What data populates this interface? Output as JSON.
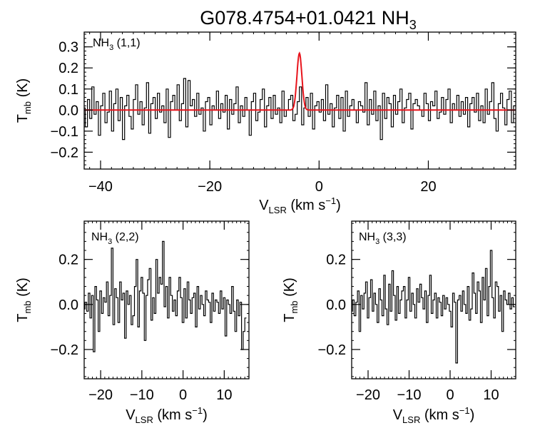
{
  "figure": {
    "title_main": "G078.4754+01.0421 NH",
    "title_sub": "3"
  },
  "colors": {
    "data": "#000000",
    "fit": "#e8141c",
    "axes": "#000000"
  },
  "chart_data": [
    {
      "type": "line",
      "panel": "top",
      "label_main": "NH",
      "label_sub": "3",
      "label_rest": " (1,1)",
      "xlabel_main": "V",
      "xlabel_sub": "LSR",
      "xlabel_rest": " (km s",
      "xlabel_sup": "−1",
      "xlabel_close": ")",
      "ylabel_main": "T",
      "ylabel_sub": "mb",
      "ylabel_rest": " (K)",
      "xlim": [
        -43,
        36
      ],
      "ylim": [
        -0.28,
        0.37
      ],
      "xticks": [
        -40,
        -20,
        0,
        20
      ],
      "xtick_labels": [
        "−40",
        "−20",
        "0",
        "20"
      ],
      "yticks": [
        -0.2,
        -0.1,
        0.0,
        0.1,
        0.2,
        0.3
      ],
      "ytick_labels": [
        "−0.2",
        "−0.1",
        "0.0",
        "0.1",
        "0.2",
        "0.3"
      ],
      "x_start": -43,
      "x_step": 0.4,
      "series": [
        {
          "style": "step",
          "values": [
            0.01,
            -0.08,
            0.05,
            -0.04,
            0.11,
            -0.02,
            0.04,
            -0.12,
            0.02,
            0.08,
            -0.06,
            -0.01,
            0.09,
            -0.1,
            0.03,
            0.1,
            -0.05,
            0.06,
            -0.14,
            0.02,
            0.07,
            -0.03,
            -0.09,
            0.05,
            0.12,
            -0.02,
            0.04,
            -0.07,
            0.01,
            0.13,
            -0.11,
            0.03,
            0.06,
            -0.04,
            0.08,
            -0.01,
            0.02,
            -0.06,
            0.1,
            -0.13,
            0.04,
            0.07,
            0.0,
            0.12,
            -0.05,
            0.03,
            0.15,
            -0.08,
            0.14,
            0.02,
            0.05,
            -0.03,
            0.08,
            -0.02,
            0.01,
            -0.1,
            0.04,
            0.06,
            -0.07,
            0.02,
            0.0,
            0.09,
            -0.04,
            0.03,
            -0.01,
            0.07,
            -0.09,
            0.05,
            -0.02,
            0.03,
            0.11,
            -0.06,
            0.02,
            -0.03,
            0.06,
            0.0,
            -0.12,
            0.04,
            0.08,
            -0.05,
            -0.01,
            0.05,
            0.1,
            -0.08,
            0.02,
            0.06,
            -0.04,
            0.07,
            -0.02,
            0.01,
            -0.06,
            0.09,
            -0.03,
            0.0,
            0.05,
            0.07,
            -0.05,
            -0.02,
            0.04,
            0.11,
            -0.07,
            0.01,
            0.06,
            -0.03,
            0.08,
            -0.09,
            0.02,
            0.04,
            -0.01,
            0.05,
            -0.05,
            0.12,
            -0.02,
            0.03,
            -0.08,
            0.01,
            0.07,
            -0.04,
            0.06,
            -0.1,
            0.09,
            -0.03,
            0.02,
            0.05,
            0.0,
            -0.06,
            0.04,
            0.02,
            -0.01,
            0.13,
            -0.07,
            0.05,
            -0.02,
            0.09,
            -0.05,
            0.02,
            -0.14,
            0.08,
            -0.04,
            0.06,
            0.03,
            -0.08,
            0.07,
            -0.02,
            0.04,
            0.1,
            -0.06,
            0.01,
            0.05,
            0.08,
            -0.09,
            0.03,
            0.05,
            0.02,
            0.0,
            -0.03,
            0.08,
            0.03,
            -0.05,
            0.04,
            0.02,
            0.09,
            -0.04,
            -0.01,
            0.06,
            -0.02,
            0.05,
            0.1,
            -0.06,
            0.03,
            0.0,
            0.07,
            -0.03,
            0.04,
            -0.02,
            0.06,
            -0.08,
            0.03,
            0.06,
            -0.01,
            0.08,
            -0.05,
            0.02,
            -0.06,
            0.1,
            -0.02,
            0.04,
            0.13,
            -0.04,
            -0.1,
            0.03,
            0.08,
            0.01,
            -0.07,
            0.05,
            0.09,
            -0.06,
            0.02,
            0.01,
            0.0
          ]
        },
        {
          "style": "fit",
          "baseline": 0.0,
          "amplitude": 0.27,
          "center": -3.6,
          "sigma": 0.45
        }
      ]
    },
    {
      "type": "line",
      "panel": "bottom-left",
      "label_main": "NH",
      "label_sub": "3",
      "label_rest": " (2,2)",
      "xlabel_main": "V",
      "xlabel_sub": "LSR",
      "xlabel_rest": " (km s",
      "xlabel_sup": "−1",
      "xlabel_close": ")",
      "ylabel_main": "T",
      "ylabel_sub": "mb",
      "ylabel_rest": " (K)",
      "xlim": [
        -24,
        16
      ],
      "ylim": [
        -0.33,
        0.37
      ],
      "xticks": [
        -20,
        -10,
        0,
        10
      ],
      "xtick_labels": [
        "−20",
        "−10",
        "0",
        "10"
      ],
      "yticks": [
        -0.2,
        0.0,
        0.2
      ],
      "ytick_labels": [
        "−0.2",
        "0.0",
        "0.2"
      ],
      "x_start": -24,
      "x_step": 0.4,
      "series": [
        {
          "style": "step",
          "values": [
            -0.02,
            0.01,
            -0.03,
            0.05,
            -0.06,
            0.04,
            -0.21,
            0.08,
            0.02,
            -0.12,
            0.06,
            -0.04,
            0.03,
            0.01,
            0.1,
            -0.05,
            0.04,
            0.25,
            -0.09,
            0.07,
            0.03,
            -0.08,
            0.1,
            0.02,
            0.05,
            -0.15,
            0.06,
            0.0,
            0.04,
            -0.09,
            -0.05,
            0.08,
            0.2,
            -0.1,
            0.06,
            0.12,
            0.05,
            -0.16,
            0.04,
            0.11,
            0.16,
            -0.07,
            0.03,
            -0.04,
            0.2,
            0.05,
            0.12,
            0.09,
            0.28,
            -0.01,
            0.08,
            -0.06,
            0.12,
            0.04,
            -0.03,
            0.02,
            -0.05,
            0.06,
            0.12,
            0.03,
            -0.08,
            0.07,
            -0.06,
            0.1,
            0.02,
            -0.04,
            0.03,
            0.05,
            -0.1,
            0.08,
            -0.02,
            0.04,
            0.0,
            -0.05,
            0.06,
            0.02,
            0.01,
            -0.08,
            0.05,
            -0.03,
            0.02,
            0.01,
            -0.04,
            0.06,
            -0.02,
            0.03,
            -0.14,
            0.02,
            0.0,
            -0.04,
            0.08,
            -0.03,
            -0.12,
            0.02,
            -0.05,
            0.01,
            -0.2,
            -0.12,
            -0.06
          ]
        }
      ]
    },
    {
      "type": "line",
      "panel": "bottom-right",
      "label_main": "NH",
      "label_sub": "3",
      "label_rest": " (3,3)",
      "xlabel_main": "V",
      "xlabel_sub": "LSR",
      "xlabel_rest": " (km s",
      "xlabel_sup": "−1",
      "xlabel_close": ")",
      "ylabel_main": "T",
      "ylabel_sub": "mb",
      "ylabel_rest": " (K)",
      "xlim": [
        -24,
        16
      ],
      "ylim": [
        -0.33,
        0.37
      ],
      "xticks": [
        -20,
        -10,
        0,
        10
      ],
      "xtick_labels": [
        "−20",
        "−10",
        "0",
        "10"
      ],
      "yticks": [
        -0.2,
        0.0,
        0.2
      ],
      "ytick_labels": [
        "−0.2",
        "0.0",
        "0.2"
      ],
      "x_start": -24,
      "x_step": 0.4,
      "series": [
        {
          "style": "step",
          "values": [
            -0.03,
            0.02,
            -0.05,
            0.01,
            0.06,
            -0.12,
            0.04,
            -0.02,
            0.05,
            0.1,
            -0.06,
            0.03,
            0.11,
            -0.03,
            0.05,
            0.0,
            -0.08,
            0.07,
            0.02,
            -0.05,
            0.13,
            -0.02,
            -0.09,
            0.09,
            -0.03,
            0.15,
            0.04,
            -0.07,
            0.08,
            -0.04,
            0.02,
            0.06,
            0.08,
            -0.06,
            0.02,
            0.12,
            -0.03,
            0.05,
            0.0,
            -0.06,
            0.07,
            0.01,
            0.09,
            0.03,
            -0.02,
            0.06,
            -0.08,
            0.04,
            0.13,
            -0.04,
            0.02,
            0.05,
            -0.06,
            0.03,
            0.01,
            -0.05,
            0.04,
            -0.02,
            0.03,
            0.0,
            -0.03,
            -0.1,
            0.05,
            0.01,
            -0.26,
            0.02,
            0.04,
            -0.03,
            0.06,
            0.0,
            -0.04,
            0.08,
            -0.07,
            -0.02,
            0.14,
            0.05,
            -0.04,
            0.1,
            0.06,
            -0.08,
            0.12,
            0.02,
            0.16,
            -0.05,
            0.08,
            0.24,
            0.03,
            -0.06,
            0.1,
            0.08,
            -0.03,
            0.04,
            -0.12,
            0.06,
            0.02,
            0.0,
            0.05,
            -0.02,
            0.03,
            -0.01
          ]
        }
      ]
    }
  ]
}
